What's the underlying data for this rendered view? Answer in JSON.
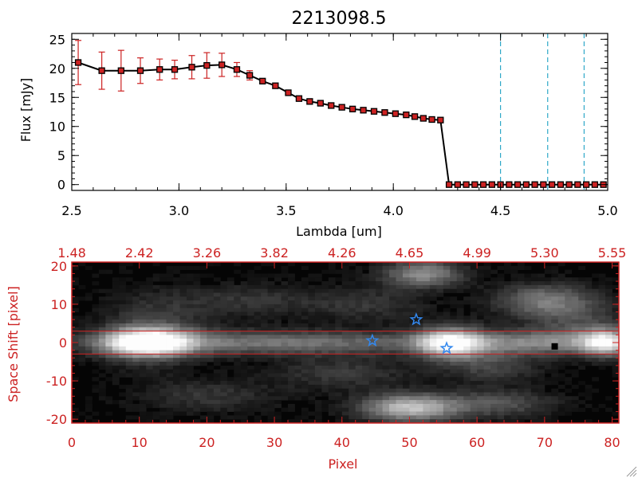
{
  "chart_data": [
    {
      "type": "line",
      "title": "2213098.5",
      "xlabel": "Lambda [um]",
      "ylabel": "Flux [mJy]",
      "xlim": [
        2.5,
        5.0
      ],
      "ylim": [
        -1,
        26
      ],
      "x_ticks": [
        2.5,
        3.0,
        3.5,
        4.0,
        4.5,
        5.0
      ],
      "x_tick_labels": [
        "2.5",
        "3.0",
        "3.5",
        "4.0",
        "4.5",
        "5.0"
      ],
      "y_ticks": [
        0,
        5,
        10,
        15,
        20,
        25
      ],
      "y_tick_labels": [
        "0",
        "5",
        "10",
        "15",
        "20",
        "25"
      ],
      "grid": false,
      "series": [
        {
          "color": "#000000",
          "marker_color": "#cc2222",
          "error_color": "#cc2222",
          "x": [
            2.53,
            2.64,
            2.73,
            2.82,
            2.91,
            2.98,
            3.06,
            3.13,
            3.2,
            3.27,
            3.33,
            3.39,
            3.45,
            3.51,
            3.56,
            3.61,
            3.66,
            3.71,
            3.76,
            3.81,
            3.86,
            3.91,
            3.96,
            4.01,
            4.06,
            4.1,
            4.14,
            4.18,
            4.22,
            4.26,
            4.3,
            4.34,
            4.38,
            4.42,
            4.46,
            4.5,
            4.54,
            4.58,
            4.62,
            4.66,
            4.7,
            4.74,
            4.78,
            4.82,
            4.86,
            4.9,
            4.94,
            4.98
          ],
          "y": [
            21.0,
            19.6,
            19.6,
            19.6,
            19.8,
            19.8,
            20.2,
            20.5,
            20.6,
            19.8,
            18.8,
            17.8,
            17.0,
            15.8,
            14.8,
            14.3,
            14.0,
            13.6,
            13.3,
            13.0,
            12.8,
            12.6,
            12.4,
            12.2,
            12.0,
            11.7,
            11.4,
            11.2,
            11.1,
            0,
            0,
            0,
            0,
            0,
            0,
            0,
            0,
            0,
            0,
            0,
            0,
            0,
            0,
            0,
            0,
            0,
            0,
            0
          ],
          "yerr": [
            3.8,
            3.2,
            3.5,
            2.2,
            1.8,
            1.6,
            2.0,
            2.2,
            2.0,
            1.2,
            0.8,
            0,
            0,
            0,
            0,
            0,
            0,
            0,
            0,
            0,
            0,
            0,
            0,
            0,
            0,
            0,
            0,
            0,
            0,
            0,
            0,
            0,
            0,
            0,
            0,
            0,
            0,
            0,
            0,
            0,
            0,
            0,
            0,
            0,
            0,
            0,
            0,
            0
          ]
        }
      ],
      "vertical_lines": {
        "x": [
          4.5,
          4.72,
          4.89
        ],
        "color": "#2fa8c8",
        "style": "dashed"
      },
      "baseline": {
        "y": 0,
        "color": "#cc2222",
        "style": "dashed"
      }
    },
    {
      "type": "heatmap",
      "xlabel": "Pixel",
      "ylabel": "Space Shift [pixel]",
      "xlim": [
        0,
        81
      ],
      "ylim": [
        -21,
        21
      ],
      "x_ticks": [
        0,
        10,
        20,
        30,
        40,
        50,
        60,
        70,
        80
      ],
      "x_tick_labels": [
        "0",
        "10",
        "20",
        "30",
        "40",
        "50",
        "60",
        "70",
        "80"
      ],
      "y_ticks": [
        -20,
        -10,
        0,
        10,
        20
      ],
      "y_tick_labels": [
        "-20",
        "-10",
        "0",
        "10",
        "20"
      ],
      "top_axis_tick_labels": [
        "1.48",
        "2.42",
        "3.26",
        "3.82",
        "4.26",
        "4.65",
        "4.99",
        "5.30",
        "5.55"
      ],
      "axis_color": "#cc2222",
      "colormap": "grayscale",
      "horizontal_lines": {
        "y": [
          3,
          -3
        ],
        "color": "#cc2222"
      },
      "blobs": [
        {
          "x": 11,
          "y": 0,
          "sx": 4.5,
          "sy": 2.5,
          "amp": 1.0
        },
        {
          "x": 30,
          "y": 0,
          "sx": 18,
          "sy": 2.2,
          "amp": 0.45
        },
        {
          "x": 56,
          "y": 0,
          "sx": 3.5,
          "sy": 2.8,
          "amp": 0.85
        },
        {
          "x": 70,
          "y": 0,
          "sx": 10,
          "sy": 2.2,
          "amp": 0.45
        },
        {
          "x": 79,
          "y": 0,
          "sx": 2.5,
          "sy": 2.5,
          "amp": 0.7
        },
        {
          "x": 12,
          "y": 3,
          "sx": 5,
          "sy": 6,
          "amp": 0.25
        },
        {
          "x": 52,
          "y": 18,
          "sx": 4,
          "sy": 2.5,
          "amp": 0.55
        },
        {
          "x": 70,
          "y": 11,
          "sx": 5,
          "sy": 3,
          "amp": 0.45
        },
        {
          "x": 50,
          "y": -17,
          "sx": 5,
          "sy": 2.5,
          "amp": 0.75
        },
        {
          "x": 63,
          "y": -16,
          "sx": 6,
          "sy": 2.5,
          "amp": 0.3
        },
        {
          "x": 62,
          "y": -6,
          "sx": 5,
          "sy": 3,
          "amp": 0.25
        },
        {
          "x": 26,
          "y": 11,
          "sx": 8,
          "sy": 3,
          "amp": 0.18
        },
        {
          "x": 44,
          "y": 10,
          "sx": 6,
          "sy": 3,
          "amp": 0.18
        },
        {
          "x": 40,
          "y": -8,
          "sx": 7,
          "sy": 3,
          "amp": 0.2
        },
        {
          "x": 20,
          "y": -14,
          "sx": 7,
          "sy": 3,
          "amp": 0.18
        },
        {
          "x": 75,
          "y": 5,
          "sx": 5,
          "sy": 4,
          "amp": 0.22
        }
      ],
      "markers": [
        {
          "x": 44.5,
          "y": 0.5,
          "shape": "star",
          "color": "#3388ee"
        },
        {
          "x": 51,
          "y": 6,
          "shape": "star",
          "color": "#3388ee"
        },
        {
          "x": 55.5,
          "y": -1.5,
          "shape": "star",
          "color": "#3388ee"
        }
      ],
      "dark_pixel": {
        "x": 71.5,
        "y": -1
      }
    }
  ]
}
